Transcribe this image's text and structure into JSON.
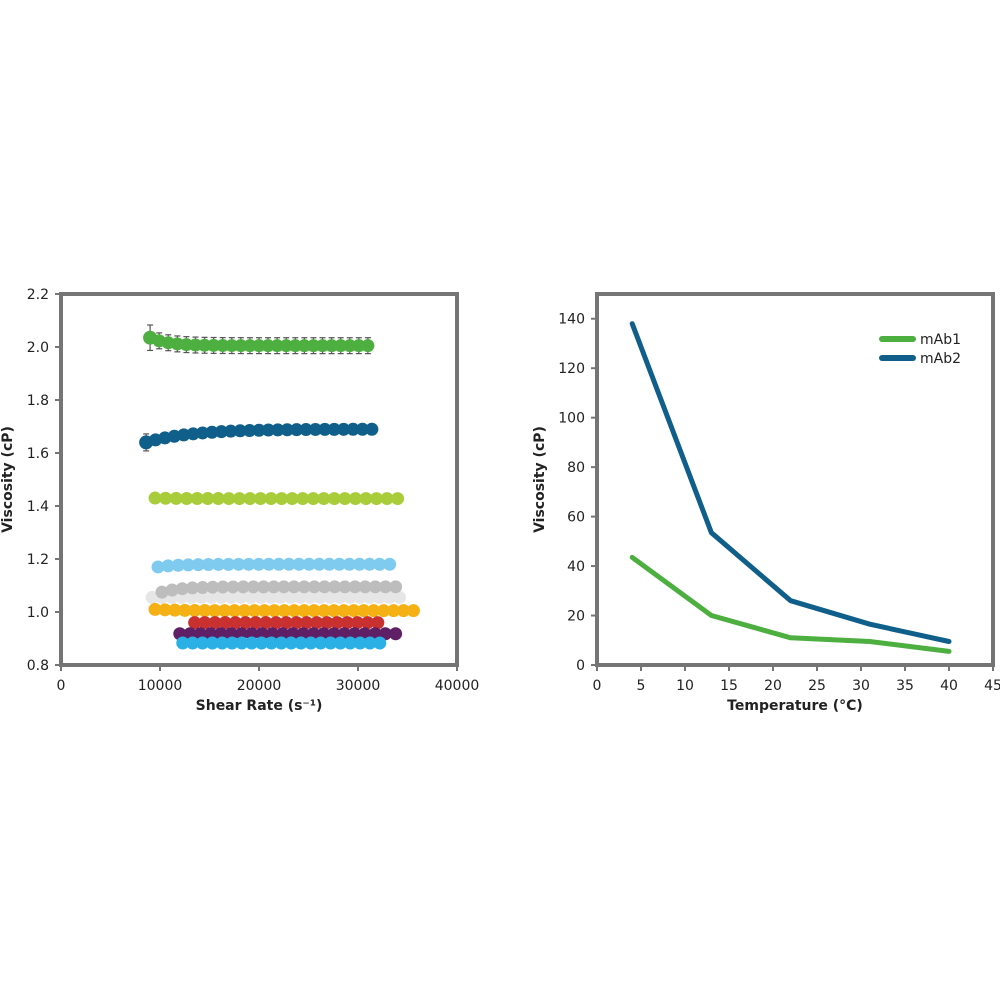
{
  "chart_data": [
    {
      "type": "scatter",
      "title": "",
      "xlabel": "Shear Rate (s⁻¹)",
      "ylabel": "Viscosity (cP)",
      "xlim": [
        0,
        40000
      ],
      "ylim": [
        0.8,
        2.2
      ],
      "xticks": [
        0,
        10000,
        20000,
        30000,
        40000
      ],
      "yticks": [
        0.8,
        1.0,
        1.2,
        1.4,
        1.6,
        1.8,
        2.0,
        2.2
      ],
      "xtick_labels": [
        "0",
        "10000",
        "20000",
        "30000",
        "40000"
      ],
      "ytick_labels": [
        "0.8",
        "1.0",
        "1.2",
        "1.4",
        "1.6",
        "1.8",
        "2.0",
        "2.2"
      ],
      "grid": false,
      "legend": "none",
      "series": [
        {
          "name": "green",
          "color": "#4caf3f",
          "x_start": 9000,
          "x_end": 31000,
          "n": 25,
          "y_start": 2.035,
          "y_plateau": 2.005,
          "errorbars": true,
          "err": 0.03
        },
        {
          "name": "dark blue",
          "color": "#0f5f8a",
          "x_start": 8600,
          "x_end": 31400,
          "n": 25,
          "y_start": 1.64,
          "y_plateau": 1.69,
          "rising": true,
          "errorbars": true,
          "err": 0.02
        },
        {
          "name": "lime",
          "color": "#a9cc3a",
          "x_start": 9500,
          "x_end": 34000,
          "n": 24,
          "y_start": 1.43,
          "y_plateau": 1.428
        },
        {
          "name": "light blue",
          "color": "#7fcbef",
          "x_start": 9800,
          "x_end": 33200,
          "n": 24,
          "y_start": 1.17,
          "y_plateau": 1.18
        },
        {
          "name": "light gray",
          "color": "#e6e6e6",
          "x_start": 9200,
          "x_end": 34200,
          "n": 26,
          "y_start": 1.055,
          "y_plateau": 1.055
        },
        {
          "name": "gray",
          "color": "#bdbdbd",
          "x_start": 10200,
          "x_end": 33800,
          "n": 24,
          "y_start": 1.075,
          "y_plateau": 1.095
        },
        {
          "name": "orange",
          "color": "#f5b013",
          "x_start": 9500,
          "x_end": 35600,
          "n": 27,
          "y_start": 1.01,
          "y_plateau": 1.005
        },
        {
          "name": "red",
          "color": "#c8312f",
          "x_start": 13500,
          "x_end": 32000,
          "n": 19,
          "y_start": 0.96,
          "y_plateau": 0.96
        },
        {
          "name": "purple",
          "color": "#5e1f66",
          "x_start": 12000,
          "x_end": 33800,
          "n": 22,
          "y_start": 0.918,
          "y_plateau": 0.918
        },
        {
          "name": "cyan",
          "color": "#2ab0e4",
          "x_start": 12300,
          "x_end": 32200,
          "n": 21,
          "y_start": 0.883,
          "y_plateau": 0.883
        }
      ]
    },
    {
      "type": "line",
      "title": "",
      "xlabel": "Temperature (°C)",
      "ylabel": "Viscosity (cP)",
      "xlim": [
        0,
        45
      ],
      "ylim": [
        0,
        150
      ],
      "xticks": [
        0,
        5,
        10,
        15,
        20,
        25,
        30,
        35,
        40,
        45
      ],
      "yticks": [
        0,
        20,
        40,
        60,
        80,
        100,
        120,
        140
      ],
      "xtick_labels": [
        "0",
        "5",
        "10",
        "15",
        "20",
        "25",
        "30",
        "35",
        "40",
        "45"
      ],
      "ytick_labels": [
        "0",
        "20",
        "40",
        "60",
        "80",
        "100",
        "120",
        "140"
      ],
      "grid": false,
      "legend": "top-right",
      "series": [
        {
          "name": "mAb1",
          "color": "#4caf3f",
          "x": [
            4,
            13,
            22,
            31,
            40
          ],
          "values": [
            43.5,
            20,
            11,
            9.5,
            5.5
          ]
        },
        {
          "name": "mAb2",
          "color": "#0f5f8a",
          "x": [
            4,
            13,
            22,
            31,
            40
          ],
          "values": [
            138,
            53.5,
            26,
            16.5,
            9.5
          ]
        }
      ]
    }
  ]
}
